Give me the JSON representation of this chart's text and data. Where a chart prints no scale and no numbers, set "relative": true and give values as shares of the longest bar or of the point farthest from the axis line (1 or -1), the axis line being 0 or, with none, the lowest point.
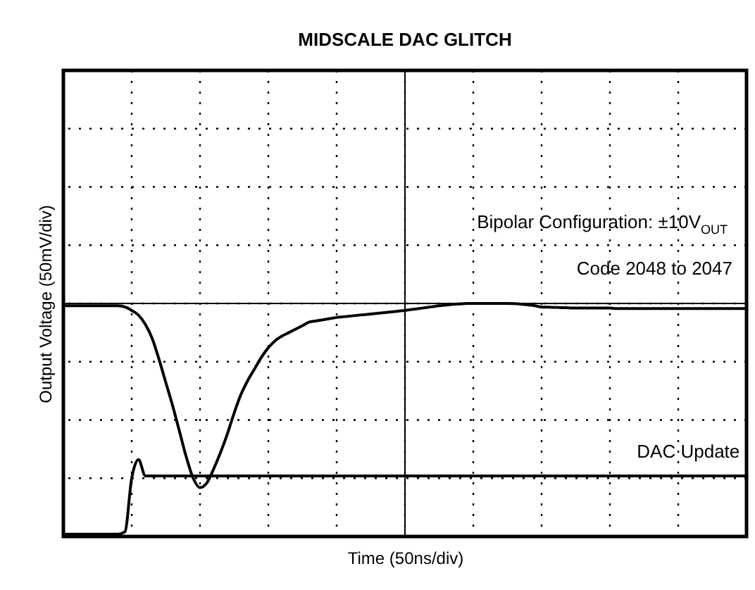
{
  "chart_data": {
    "type": "line",
    "title": "MIDSCALE DAC GLITCH",
    "xlabel": "Time (50ns/div)",
    "ylabel": "Output Voltage (50mV/div)",
    "relative": true,
    "grid": true,
    "tick_labels": false,
    "line_style": "solid",
    "annotations": [
      "Bipolar Configuration: ±10V$_{OUT}$",
      "Code 2048 to 2047"
    ],
    "categories": [
      null,
      null,
      null,
      null,
      null,
      null,
      null,
      null,
      null,
      null,
      null,
      null,
      null,
      null,
      null,
      null,
      null,
      null,
      null,
      null,
      null,
      null,
      null,
      null,
      null,
      null,
      null,
      null,
      null,
      null,
      null,
      null,
      null,
      null,
      null,
      null,
      null,
      null,
      null,
      null,
      null,
      null,
      null,
      null,
      null,
      null,
      null,
      null,
      null,
      null,
      null,
      null,
      null,
      null,
      null,
      null,
      null,
      null,
      null,
      null,
      null,
      null,
      null,
      null,
      null,
      null,
      null,
      null,
      null,
      null,
      null,
      null,
      null,
      null,
      null,
      null,
      null,
      null,
      null,
      null,
      null,
      null,
      null,
      null,
      null,
      null,
      null,
      null,
      null,
      null,
      null,
      null,
      null,
      null,
      null,
      null,
      null,
      null,
      null,
      null,
      null
    ],
    "series": [
      {
        "color": "#000000",
        "values": [
          0.99,
          0.99,
          0.99,
          0.99,
          0.99,
          0.99,
          0.99,
          0.99,
          0.99,
          0.985,
          0.97,
          0.95,
          0.91,
          0.85,
          0.76,
          0.66,
          0.56,
          0.45,
          0.34,
          0.25,
          0.21,
          0.23,
          0.29,
          0.36,
          0.44,
          0.53,
          0.61,
          0.67,
          0.72,
          0.77,
          0.81,
          0.84,
          0.86,
          0.875,
          0.89,
          0.905,
          0.92,
          0.925,
          0.93,
          0.935,
          0.94,
          0.943,
          0.946,
          0.949,
          0.952,
          0.955,
          0.958,
          0.961,
          0.964,
          0.967,
          0.97,
          0.974,
          0.978,
          0.982,
          0.986,
          0.99,
          0.993,
          0.996,
          0.998,
          1.0,
          1.0,
          1.0,
          1.0,
          1.0,
          1.0,
          1.0,
          0.999,
          0.997,
          0.994,
          0.99,
          0.985,
          0.984,
          0.983,
          0.982,
          0.981,
          0.98,
          0.98,
          0.98,
          0.98,
          0.98,
          0.98,
          0.978,
          0.978,
          0.978,
          0.978,
          0.978,
          0.978,
          0.978,
          0.978,
          0.978,
          0.978,
          0.978,
          0.978,
          0.978,
          0.978,
          0.978,
          0.978,
          0.978,
          0.978,
          0.978,
          0.978
        ]
      },
      {
        "name": "DAC Update",
        "color": "#000000",
        "values": [
          0.01,
          0.01,
          0.01,
          0.01,
          0.01,
          0.01,
          0.01,
          0.01,
          0.01,
          0.02,
          0.25,
          0.33,
          0.26,
          0.26,
          0.26,
          0.26,
          0.26,
          0.26,
          0.26,
          0.26,
          0.26,
          0.26,
          0.26,
          0.26,
          0.26,
          0.26,
          0.26,
          0.26,
          0.26,
          0.26,
          0.26,
          0.26,
          0.26,
          0.26,
          0.26,
          0.26,
          0.26,
          0.26,
          0.26,
          0.26,
          0.26,
          0.26,
          0.26,
          0.26,
          0.26,
          0.26,
          0.26,
          0.26,
          0.26,
          0.26,
          0.26,
          0.26,
          0.26,
          0.26,
          0.26,
          0.26,
          0.26,
          0.26,
          0.26,
          0.26,
          0.26,
          0.26,
          0.26,
          0.26,
          0.26,
          0.26,
          0.26,
          0.26,
          0.26,
          0.26,
          0.26,
          0.26,
          0.26,
          0.26,
          0.26,
          0.26,
          0.26,
          0.26,
          0.26,
          0.26,
          0.26,
          0.26,
          0.26,
          0.26,
          0.26,
          0.26,
          0.26,
          0.26,
          0.26,
          0.26,
          0.26,
          0.26,
          0.26,
          0.26,
          0.26,
          0.26,
          0.26,
          0.26,
          0.26,
          0.26,
          0.26
        ]
      }
    ]
  }
}
